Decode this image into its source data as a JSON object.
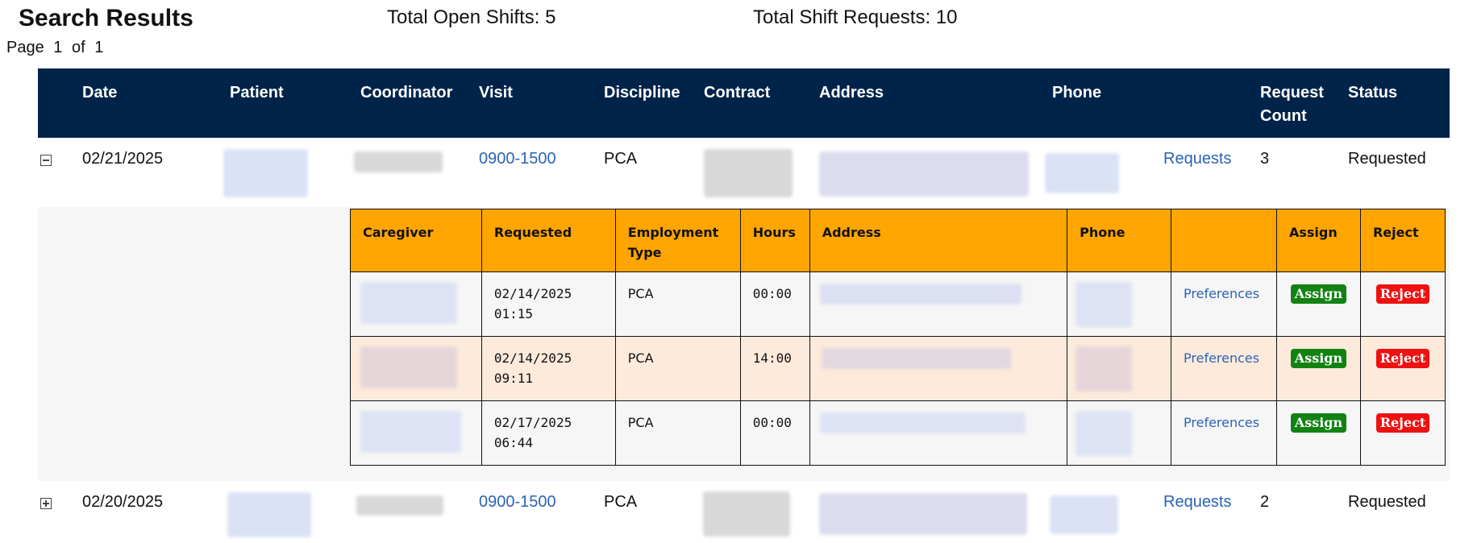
{
  "page": {
    "title": "Search Results",
    "open_shifts": "Total Open Shifts: 5",
    "shift_requests": "Total Shift Requests: 10",
    "paging": {
      "prefix": "Page",
      "current": "1",
      "of": "of",
      "total": "1"
    }
  },
  "table": {
    "headers": [
      "Date",
      "Patient",
      "Coordinator",
      "Visit",
      "Discipline",
      "Contract",
      "Address",
      "Phone",
      "Request Count",
      "Status"
    ]
  },
  "rows": [
    {
      "expanded": true,
      "date": "02/21/2025",
      "visit": "0900-1500",
      "discipline": "PCA",
      "requests_link": "Requests",
      "request_count": "3",
      "status": "Requested"
    },
    {
      "expanded": false,
      "date": "02/20/2025",
      "visit": "0900-1500",
      "discipline": "PCA",
      "requests_link": "Requests",
      "request_count": "2",
      "status": "Requested"
    }
  ],
  "sub_table": {
    "headers": [
      "Caregiver",
      "Requested",
      "Employment Type",
      "Hours",
      "Address",
      "Phone",
      "",
      "Assign",
      "Reject"
    ],
    "rows": [
      {
        "requested": "02/14/2025 01:15",
        "employment_type": "PCA",
        "hours": "00:00",
        "preferences": "Preferences",
        "assign": "Assign",
        "reject": "Reject"
      },
      {
        "requested": "02/14/2025 09:11",
        "employment_type": "PCA",
        "hours": "14:00",
        "preferences": "Preferences",
        "assign": "Assign",
        "reject": "Reject"
      },
      {
        "requested": "02/17/2025 06:44",
        "employment_type": "PCA",
        "hours": "00:00",
        "preferences": "Preferences",
        "assign": "Assign",
        "reject": "Reject"
      }
    ]
  },
  "colors": {
    "header_bg": "#00234a",
    "sub_header_bg": "#ffa500",
    "assign_green": "#128212",
    "reject_red": "#ef1010",
    "link_blue": "#2b63b5",
    "highlight_row": "#feeadb"
  }
}
